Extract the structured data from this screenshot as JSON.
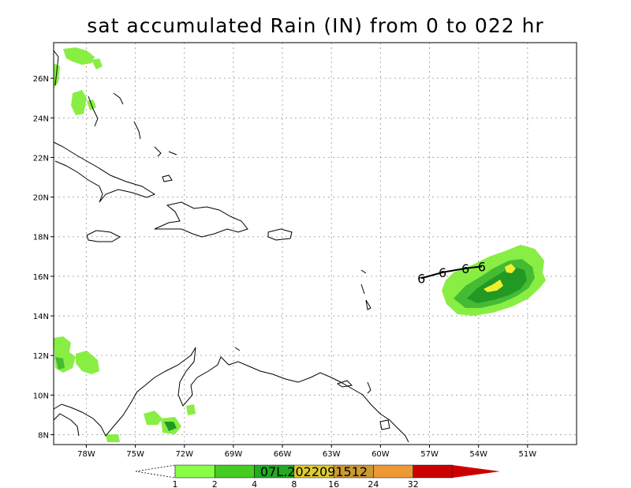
{
  "title": "sat accumulated Rain (IN) from 0 to 022 hr",
  "map": {
    "lon_range": [
      -80,
      -48
    ],
    "lat_range": [
      7.5,
      27.8
    ],
    "lon_ticks": [
      {
        "value": -78,
        "label": "78W"
      },
      {
        "value": -75,
        "label": "75W"
      },
      {
        "value": -72,
        "label": "72W"
      },
      {
        "value": -69,
        "label": "69W"
      },
      {
        "value": -66,
        "label": "66W"
      },
      {
        "value": -63,
        "label": "63W"
      },
      {
        "value": -60,
        "label": "60W"
      },
      {
        "value": -57,
        "label": "57W"
      },
      {
        "value": -54,
        "label": "54W"
      },
      {
        "value": -51,
        "label": "51W"
      }
    ],
    "lat_ticks": [
      {
        "value": 8,
        "label": "8N"
      },
      {
        "value": 10,
        "label": "10N"
      },
      {
        "value": 12,
        "label": "12N"
      },
      {
        "value": 14,
        "label": "14N"
      },
      {
        "value": 16,
        "label": "16N"
      },
      {
        "value": 18,
        "label": "18N"
      },
      {
        "value": 20,
        "label": "20N"
      },
      {
        "value": 22,
        "label": "22N"
      },
      {
        "value": 24,
        "label": "24N"
      },
      {
        "value": 26,
        "label": "26N"
      }
    ],
    "grid": true,
    "storm_id_text": "07L.2022091512",
    "track_symbol": "6",
    "track_points": [
      {
        "lon": -57.5,
        "lat": 15.9
      },
      {
        "lon": -56.2,
        "lat": 16.2
      },
      {
        "lon": -54.8,
        "lat": 16.4
      },
      {
        "lon": -53.8,
        "lat": 16.5
      }
    ]
  },
  "colorbar": {
    "labels": [
      "1",
      "2",
      "4",
      "8",
      "16",
      "24",
      "32"
    ],
    "colors": [
      "#88ff44",
      "#44cc22",
      "#22aa22",
      "#ddcc33",
      "#cc9933",
      "#ee9933",
      "#cc0000"
    ]
  },
  "colors": {
    "rain_light": "#88ee44",
    "rain_medium": "#44bb33",
    "rain_heavy": "#229922",
    "rain_peak": "#eeee33"
  }
}
